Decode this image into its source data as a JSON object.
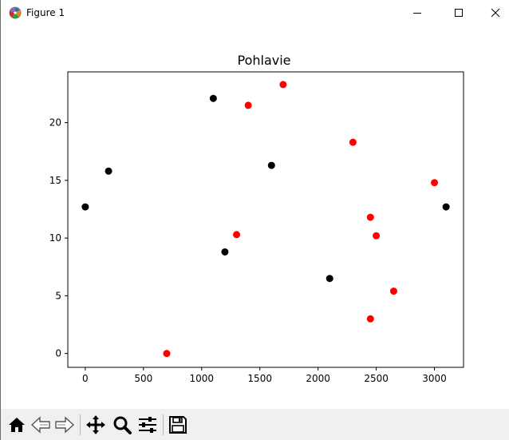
{
  "window": {
    "title": "Figure 1",
    "controls": {
      "minimize": "minimize",
      "maximize": "maximize",
      "close": "close"
    }
  },
  "toolbar": {
    "buttons": [
      {
        "id": "home",
        "icon": "home-icon"
      },
      {
        "id": "back",
        "icon": "back-arrow-icon"
      },
      {
        "id": "forward",
        "icon": "forward-arrow-icon"
      },
      {
        "id": "pan",
        "icon": "move-icon"
      },
      {
        "id": "zoom",
        "icon": "magnifier-icon"
      },
      {
        "id": "configure",
        "icon": "sliders-icon"
      },
      {
        "id": "save",
        "icon": "floppy-icon"
      }
    ]
  },
  "chart_data": {
    "type": "scatter",
    "title": "Pohlavie",
    "xlabel": "",
    "ylabel": "",
    "xlim": [
      -150,
      3250
    ],
    "ylim": [
      -1.2,
      24.4
    ],
    "xticks": [
      0,
      500,
      1000,
      1500,
      2000,
      2500,
      3000
    ],
    "yticks": [
      0,
      5,
      10,
      15,
      20
    ],
    "grid": false,
    "series": [
      {
        "color": "#000000",
        "points": [
          {
            "x": 0,
            "y": 12.7
          },
          {
            "x": 200,
            "y": 15.8
          },
          {
            "x": 1100,
            "y": 22.1
          },
          {
            "x": 1200,
            "y": 8.8
          },
          {
            "x": 1600,
            "y": 16.3
          },
          {
            "x": 2100,
            "y": 6.5
          },
          {
            "x": 3100,
            "y": 12.7
          }
        ]
      },
      {
        "color": "#ff0000",
        "points": [
          {
            "x": 700,
            "y": 0.0
          },
          {
            "x": 1300,
            "y": 10.3
          },
          {
            "x": 1400,
            "y": 21.5
          },
          {
            "x": 1700,
            "y": 23.3
          },
          {
            "x": 2300,
            "y": 18.3
          },
          {
            "x": 2450,
            "y": 11.8
          },
          {
            "x": 2500,
            "y": 10.2
          },
          {
            "x": 2450,
            "y": 3.0
          },
          {
            "x": 2650,
            "y": 5.4
          },
          {
            "x": 3000,
            "y": 14.8
          }
        ]
      }
    ]
  }
}
